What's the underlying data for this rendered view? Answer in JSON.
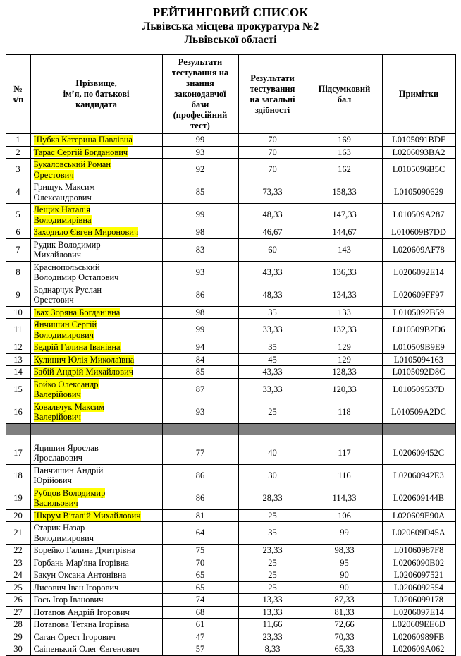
{
  "header": {
    "title": "РЕЙТИНГОВИЙ СПИСОК",
    "subtitle1": "Львівська місцева прокуратура №2",
    "subtitle2": "Львівської області"
  },
  "table": {
    "columns": [
      "№\nз/п",
      "Прізвище,\nім’я, по батькові\nкандидата",
      "Результати\nтестування на\nзнання\nзаконодавчої\nбази\n(професійний\nтест)",
      "Результати\nтестування\nна загальні\nздібності",
      "Підсумковий\nбал",
      "Примітки"
    ],
    "highlight_color": "#ffff00",
    "separator_color": "#7f7f7f",
    "separator_after_row": 16,
    "rows": [
      {
        "num": "1",
        "name": "Шубка Катерина Павлівна",
        "highlighted": true,
        "prof": "99",
        "general": "70",
        "total": "169",
        "note": "L0105091BDF"
      },
      {
        "num": "2",
        "name": "Тарас Сергій Богданович",
        "highlighted": true,
        "prof": "93",
        "general": "70",
        "total": "163",
        "note": "L0206093BA2"
      },
      {
        "num": "3",
        "name": "Букаловський Роман\nОрестович",
        "highlighted": true,
        "prof": "92",
        "general": "70",
        "total": "162",
        "note": "L0105096B5C"
      },
      {
        "num": "4",
        "name": "Грищук Максим\nОлександрович",
        "highlighted": false,
        "prof": "85",
        "general": "73,33",
        "total": "158,33",
        "note": "L0105090629"
      },
      {
        "num": "5",
        "name": "Лещик Наталія\nВолодимирівна",
        "highlighted": true,
        "prof": "99",
        "general": "48,33",
        "total": "147,33",
        "note": "L010509A287"
      },
      {
        "num": "6",
        "name": "Заходило Євген Миронович",
        "highlighted": true,
        "prof": "98",
        "general": "46,67",
        "total": "144,67",
        "note": "L010609B7DD"
      },
      {
        "num": "7",
        "name": "Рудик Володимир\nМихайлович",
        "highlighted": false,
        "prof": "83",
        "general": "60",
        "total": "143",
        "note": "L020609AF78"
      },
      {
        "num": "8",
        "name": "Краснопольський\nВолодимир Остапович",
        "highlighted": false,
        "prof": "93",
        "general": "43,33",
        "total": "136,33",
        "note": "L0206092E14"
      },
      {
        "num": "9",
        "name": "Боднарчук Руслан\nОрестович",
        "highlighted": false,
        "prof": "86",
        "general": "48,33",
        "total": "134,33",
        "note": "L020609FF97"
      },
      {
        "num": "10",
        "name": "Івах Зоряна Богданівна",
        "highlighted": true,
        "prof": "98",
        "general": "35",
        "total": "133",
        "note": "L0105092B59"
      },
      {
        "num": "11",
        "name": "Янчишин Сергій\nВолодимирович",
        "highlighted": true,
        "prof": "99",
        "general": "33,33",
        "total": "132,33",
        "note": "L010509B2D6"
      },
      {
        "num": "12",
        "name": "Бедрій Галина Іванівна",
        "highlighted": true,
        "prof": "94",
        "general": "35",
        "total": "129",
        "note": "L010509B9E9"
      },
      {
        "num": "13",
        "name": "Кулинич Юлія Миколаївна",
        "highlighted": true,
        "prof": "84",
        "general": "45",
        "total": "129",
        "note": "L0105094163"
      },
      {
        "num": "14",
        "name": "Бабій Андрій Михайлович",
        "highlighted": true,
        "prof": "85",
        "general": "43,33",
        "total": "128,33",
        "note": "L0105092D8C"
      },
      {
        "num": "15",
        "name": "Бойко Олександр\nВалерійович",
        "highlighted": true,
        "prof": "87",
        "general": "33,33",
        "total": "120,33",
        "note": "L010509537D"
      },
      {
        "num": "16",
        "name": "Ковальчук Максим\nВалерійович",
        "highlighted": true,
        "prof": "93",
        "general": "25",
        "total": "118",
        "note": "L010509A2DC"
      },
      {
        "num": "17",
        "name": "Яцишин Ярослав\nЯрославович",
        "highlighted": false,
        "prof": "77",
        "general": "40",
        "total": "117",
        "note": "L020609452C"
      },
      {
        "num": "18",
        "name": "Панчишин Андрій\nЮрійович",
        "highlighted": false,
        "prof": "86",
        "general": "30",
        "total": "116",
        "note": "L02060942E3"
      },
      {
        "num": "19",
        "name": "Рубцов Володимир\nВасильович",
        "highlighted": true,
        "prof": "86",
        "general": "28,33",
        "total": "114,33",
        "note": "L020609144B"
      },
      {
        "num": "20",
        "name": "Шкрум Віталій Михайлович",
        "highlighted": true,
        "prof": "81",
        "general": "25",
        "total": "106",
        "note": "L020609E90A"
      },
      {
        "num": "21",
        "name": "Старик Назар\nВолодимирович",
        "highlighted": false,
        "prof": "64",
        "general": "35",
        "total": "99",
        "note": "L020609D45A"
      },
      {
        "num": "22",
        "name": "Борейко Галина Дмитрівна",
        "highlighted": false,
        "prof": "75",
        "general": "23,33",
        "total": "98,33",
        "note": "L01060987F8"
      },
      {
        "num": "23",
        "name": "Горбань Мар'яна Ігорівна",
        "highlighted": false,
        "prof": "70",
        "general": "25",
        "total": "95",
        "note": "L0206090B02"
      },
      {
        "num": "24",
        "name": "Бакун Оксана Антонівна",
        "highlighted": false,
        "prof": "65",
        "general": "25",
        "total": "90",
        "note": "L0206097521"
      },
      {
        "num": "25",
        "name": "Лисович Іван Ігорович",
        "highlighted": false,
        "prof": "65",
        "general": "25",
        "total": "90",
        "note": "L0206092554"
      },
      {
        "num": "26",
        "name": "Гось Ігор Іванович",
        "highlighted": false,
        "prof": "74",
        "general": "13,33",
        "total": "87,33",
        "note": "L0206099178"
      },
      {
        "num": "27",
        "name": "Потапов Андрій Ігорович",
        "highlighted": false,
        "prof": "68",
        "general": "13,33",
        "total": "81,33",
        "note": "L0206097E14"
      },
      {
        "num": "28",
        "name": "Потапова Тетяна Ігорівна",
        "highlighted": false,
        "prof": "61",
        "general": "11,66",
        "total": "72,66",
        "note": "L020609EE6D"
      },
      {
        "num": "29",
        "name": "Саган Орест Ігорович",
        "highlighted": false,
        "prof": "47",
        "general": "23,33",
        "total": "70,33",
        "note": "L02060989FB"
      },
      {
        "num": "30",
        "name": "Саіпенький Олег Євгенович",
        "highlighted": false,
        "prof": "57",
        "general": "8,33",
        "total": "65,33",
        "note": "L020609A062"
      }
    ]
  }
}
